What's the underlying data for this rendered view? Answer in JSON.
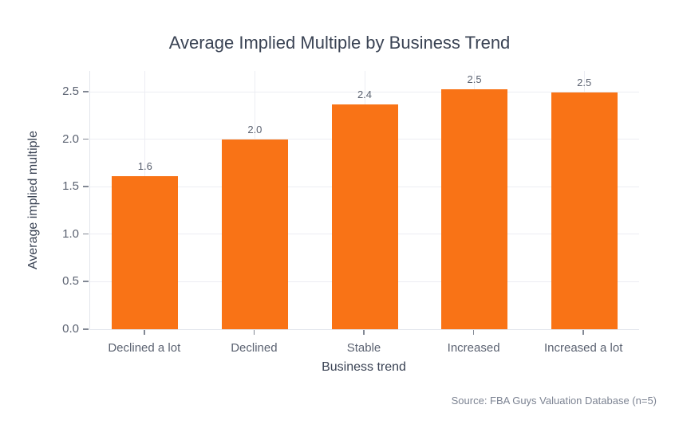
{
  "chart_data": {
    "type": "bar",
    "title": "Average Implied Multiple by Business Trend",
    "xlabel": "Business trend",
    "ylabel": "Average implied multiple",
    "categories": [
      "Declined a lot",
      "Declined",
      "Stable",
      "Increased",
      "Increased a lot"
    ],
    "values": [
      1.61,
      2.0,
      2.37,
      2.53,
      2.49
    ],
    "value_labels": [
      "1.6",
      "2.0",
      "2.4",
      "2.5",
      "2.5"
    ],
    "y_ticks": [
      0.0,
      0.5,
      1.0,
      1.5,
      2.0,
      2.5
    ],
    "y_tick_labels": [
      "0.0",
      "0.5",
      "1.0",
      "1.5",
      "2.0",
      "2.5"
    ],
    "ylim": [
      0,
      2.72
    ],
    "grid": true,
    "legend": "none",
    "source": "Source: FBA Guys Valuation Database (n=5)",
    "colors": {
      "bar": "#f97316",
      "grid": "#ecedf3",
      "axis_line": "#e2e5ec",
      "tick_mark": "#828894",
      "tick_text": "#5b6271",
      "title_text": "#3a4354",
      "source_text": "#7d8493",
      "background": "#ffffff"
    }
  }
}
